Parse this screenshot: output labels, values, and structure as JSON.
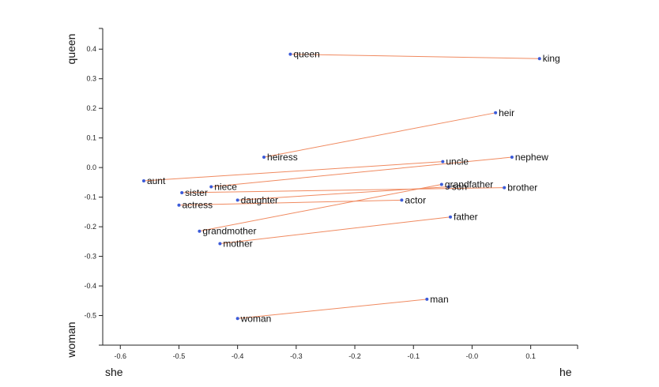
{
  "chart_data": {
    "type": "scatter",
    "title": "",
    "xlim": [
      -0.63,
      0.18
    ],
    "ylim": [
      -0.6,
      0.47
    ],
    "x_ticks": [
      -0.6,
      -0.5,
      -0.4,
      -0.3,
      -0.2,
      -0.1,
      0.0,
      0.1
    ],
    "y_ticks": [
      0.4,
      0.3,
      0.2,
      0.1,
      0.0,
      -0.1,
      -0.2,
      -0.3,
      -0.4,
      -0.5
    ],
    "x_tick_labels": [
      "-0.6",
      "-0.5",
      "-0.4",
      "-0.3",
      "-0.2",
      "-0.1",
      "-0.0",
      "0.1"
    ],
    "y_tick_labels": [
      "0.4",
      "0.3",
      "0.2",
      "0.1",
      "0.0",
      "-0.1",
      "-0.2",
      "-0.3",
      "-0.4",
      "-0.5"
    ],
    "x_axis_labels": {
      "left": "she",
      "right": "he"
    },
    "y_axis_labels": {
      "top": "queen",
      "bottom": "woman"
    },
    "grid": false,
    "colors": {
      "point": "#3b5bd9",
      "line": "#f08a60",
      "axis": "#222222"
    },
    "points": [
      {
        "label": "queen",
        "x": -0.31,
        "y": 0.383
      },
      {
        "label": "king",
        "x": 0.115,
        "y": 0.368
      },
      {
        "label": "heir",
        "x": 0.04,
        "y": 0.185
      },
      {
        "label": "heiress",
        "x": -0.355,
        "y": 0.035
      },
      {
        "label": "nephew",
        "x": 0.068,
        "y": 0.035
      },
      {
        "label": "uncle",
        "x": -0.05,
        "y": 0.02
      },
      {
        "label": "aunt",
        "x": -0.56,
        "y": -0.045
      },
      {
        "label": "niece",
        "x": -0.445,
        "y": -0.065
      },
      {
        "label": "grandfather",
        "x": -0.052,
        "y": -0.057
      },
      {
        "label": "son",
        "x": -0.04,
        "y": -0.065
      },
      {
        "label": "brother",
        "x": 0.055,
        "y": -0.068
      },
      {
        "label": "sister",
        "x": -0.495,
        "y": -0.085
      },
      {
        "label": "daughter",
        "x": -0.4,
        "y": -0.11
      },
      {
        "label": "actor",
        "x": -0.12,
        "y": -0.11
      },
      {
        "label": "actress",
        "x": -0.5,
        "y": -0.127
      },
      {
        "label": "father",
        "x": -0.037,
        "y": -0.167
      },
      {
        "label": "grandmother",
        "x": -0.465,
        "y": -0.215
      },
      {
        "label": "mother",
        "x": -0.43,
        "y": -0.257
      },
      {
        "label": "man",
        "x": -0.077,
        "y": -0.445
      },
      {
        "label": "woman",
        "x": -0.4,
        "y": -0.51
      }
    ],
    "pairs": [
      [
        "queen",
        "king"
      ],
      [
        "heiress",
        "heir"
      ],
      [
        "aunt",
        "uncle"
      ],
      [
        "niece",
        "nephew"
      ],
      [
        "sister",
        "brother"
      ],
      [
        "daughter",
        "son"
      ],
      [
        "actress",
        "actor"
      ],
      [
        "grandmother",
        "grandfather"
      ],
      [
        "mother",
        "father"
      ],
      [
        "woman",
        "man"
      ]
    ]
  }
}
